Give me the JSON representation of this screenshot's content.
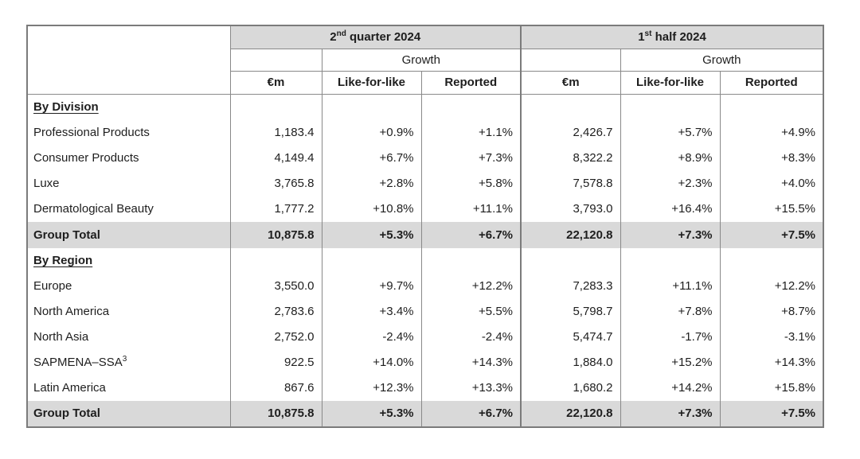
{
  "colors": {
    "header_band": "#d9d9d9",
    "total_row_band": "#d9d9d9",
    "grid_line": "#898989",
    "outer_border": "#7b7b7b",
    "text": "#1e1e1e"
  },
  "header": {
    "q2": {
      "num": "2",
      "sup": "nd",
      "rest": " quarter 2024"
    },
    "h1": {
      "num": "1",
      "sup": "st",
      "rest": " half 2024"
    },
    "growth": "Growth",
    "columns": {
      "eur_m": "€m",
      "lfl": "Like-for-like",
      "reported": "Reported"
    }
  },
  "table": {
    "sections": [
      {
        "title": "By Division",
        "rows": [
          {
            "label": "Professional Products",
            "cells": [
              "1,183.4",
              "+0.9%",
              "+1.1%",
              "2,426.7",
              "+5.7%",
              "+4.9%"
            ]
          },
          {
            "label": "Consumer Products",
            "cells": [
              "4,149.4",
              "+6.7%",
              "+7.3%",
              "8,322.2",
              "+8.9%",
              "+8.3%"
            ]
          },
          {
            "label": "Luxe",
            "cells": [
              "3,765.8",
              "+2.8%",
              "+5.8%",
              "7,578.8",
              "+2.3%",
              "+4.0%"
            ]
          },
          {
            "label": "Dermatological Beauty",
            "cells": [
              "1,777.2",
              "+10.8%",
              "+11.1%",
              "3,793.0",
              "+16.4%",
              "+15.5%"
            ]
          },
          {
            "label": "Group Total",
            "total": true,
            "cells": [
              "10,875.8",
              "+5.3%",
              "+6.7%",
              "22,120.8",
              "+7.3%",
              "+7.5%"
            ]
          }
        ]
      },
      {
        "title": "By Region",
        "rows": [
          {
            "label": "Europe",
            "cells": [
              "3,550.0",
              "+9.7%",
              "+12.2%",
              "7,283.3",
              "+11.1%",
              "+12.2%"
            ]
          },
          {
            "label": "North America",
            "cells": [
              "2,783.6",
              "+3.4%",
              "+5.5%",
              "5,798.7",
              "+7.8%",
              "+8.7%"
            ]
          },
          {
            "label": "North Asia",
            "cells": [
              "2,752.0",
              "-2.4%",
              "-2.4%",
              "5,474.7",
              "-1.7%",
              "-3.1%"
            ]
          },
          {
            "label": "SAPMENA–SSA",
            "label_sup": "3",
            "cells": [
              "922.5",
              "+14.0%",
              "+14.3%",
              "1,884.0",
              "+15.2%",
              "+14.3%"
            ]
          },
          {
            "label": "Latin America",
            "cells": [
              "867.6",
              "+12.3%",
              "+13.3%",
              "1,680.2",
              "+14.2%",
              "+15.8%"
            ]
          },
          {
            "label": "Group Total",
            "total": true,
            "cells": [
              "10,875.8",
              "+5.3%",
              "+6.7%",
              "22,120.8",
              "+7.3%",
              "+7.5%"
            ]
          }
        ]
      }
    ]
  }
}
